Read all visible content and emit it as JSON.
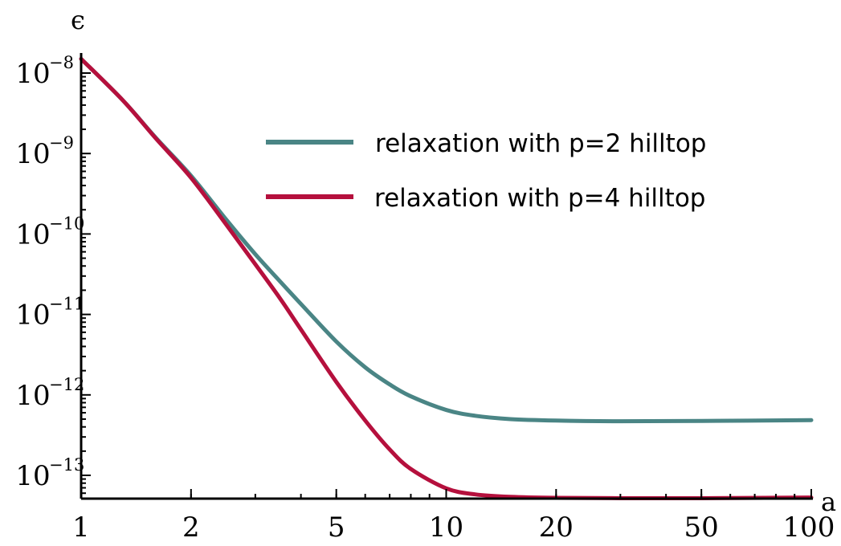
{
  "chart_data": {
    "type": "line",
    "title": "",
    "xlabel": "a",
    "ylabel": "ϵ",
    "xscale": "log",
    "yscale": "log",
    "xlim": [
      1,
      100
    ],
    "ylim": [
      3e-14,
      1.6e-08
    ],
    "grid": false,
    "legend_placement": "top-right",
    "x_ticks": [
      {
        "value": 1,
        "label": "1"
      },
      {
        "value": 2,
        "label": "2"
      },
      {
        "value": 5,
        "label": "5"
      },
      {
        "value": 10,
        "label": "10"
      },
      {
        "value": 20,
        "label": "20"
      },
      {
        "value": 50,
        "label": "50"
      },
      {
        "value": 100,
        "label": "100"
      }
    ],
    "y_ticks": [
      {
        "value": 1e-08,
        "base": "10",
        "exponent": "−8"
      },
      {
        "value": 1e-09,
        "base": "10",
        "exponent": "−9"
      },
      {
        "value": 1e-10,
        "base": "10",
        "exponent": "−10"
      },
      {
        "value": 1e-11,
        "base": "10",
        "exponent": "−11"
      },
      {
        "value": 1e-12,
        "base": "10",
        "exponent": "−12"
      },
      {
        "value": 1e-13,
        "base": "10",
        "exponent": "−13"
      }
    ],
    "x": [
      1,
      1.3,
      1.6,
      2,
      2.5,
      3,
      3.5,
      4,
      5,
      6,
      7,
      8,
      10,
      12,
      15,
      20,
      30,
      50,
      100
    ],
    "series": [
      {
        "name": "relaxation with p=2 hilltop",
        "color": "#4a8585",
        "values": [
          1.5e-08,
          4.6e-09,
          1.58e-09,
          5.3e-10,
          1.5e-10,
          5.6e-11,
          2.6e-11,
          1.35e-11,
          4.6e-12,
          2.2e-12,
          1.35e-12,
          9.6e-13,
          6.5e-13,
          5.5e-13,
          5e-13,
          4.8e-13,
          4.7e-13,
          4.75e-13,
          4.85e-13
        ]
      },
      {
        "name": "relaxation with p=4 hilltop",
        "color": "#b5103d",
        "values": [
          1.5e-08,
          4.6e-09,
          1.55e-09,
          5e-10,
          1.3e-10,
          4.2e-11,
          1.6e-11,
          6.5e-12,
          1.45e-12,
          4.8e-13,
          2.1e-13,
          1.2e-13,
          6.9e-14,
          5.8e-14,
          5.4e-14,
          5.25e-14,
          5.2e-14,
          5.2e-14,
          5.3e-14
        ]
      }
    ]
  }
}
